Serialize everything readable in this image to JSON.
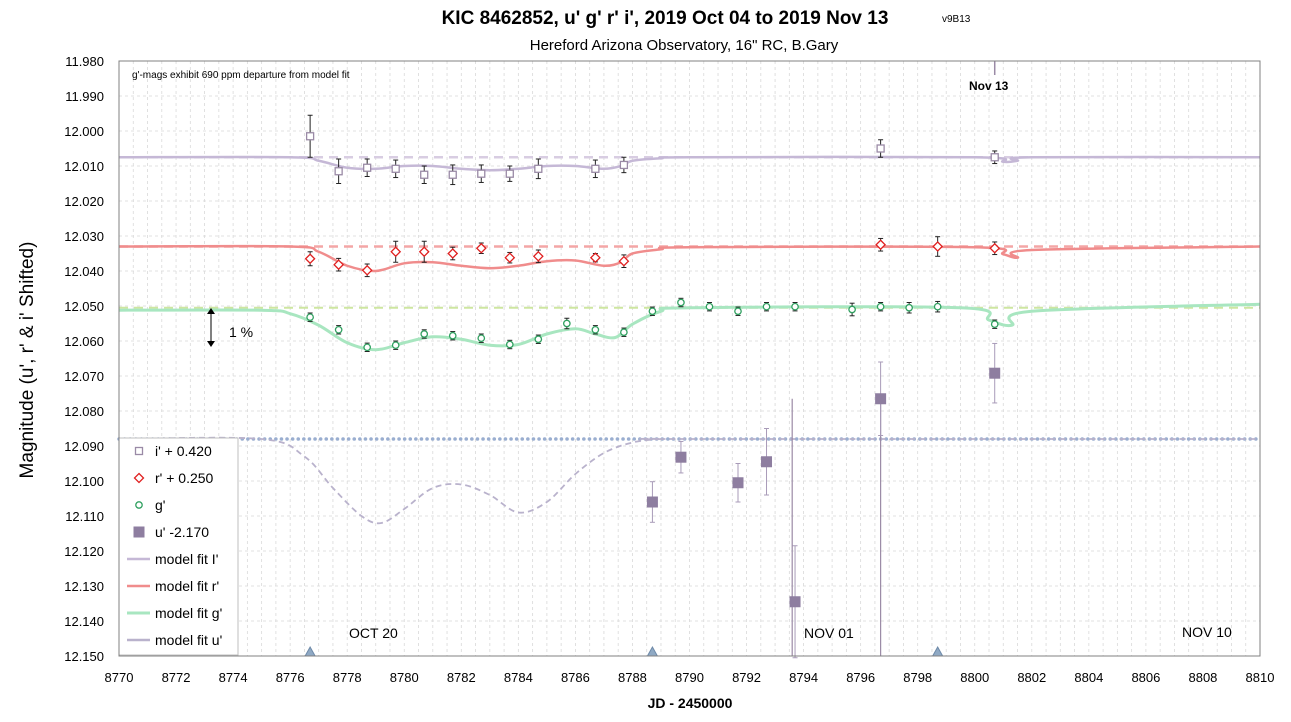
{
  "chart_data": {
    "type": "scatter",
    "title": "KIC 8462852, u' g' r' i', 2019 Oct 04 to 2019 Nov 13",
    "title_suffix": "v9B13",
    "subtitle": "Hereford Arizona Observatory, 16\" RC, B.Gary",
    "xlabel": "JD - 2450000",
    "ylabel": "Magnitude  (u', r' & i' Shifted)",
    "xlim": [
      8770,
      8810
    ],
    "ylim": [
      12.15,
      11.98
    ],
    "y_inverted": true,
    "grid": true,
    "legend_position": "left",
    "xticks": [
      "8770",
      "8772",
      "8774",
      "8776",
      "8778",
      "8780",
      "8782",
      "8784",
      "8786",
      "8788",
      "8790",
      "8792",
      "8794",
      "8796",
      "8798",
      "8800",
      "8802",
      "8804",
      "8806",
      "8808",
      "8810"
    ],
    "yticks": [
      "11.980",
      "11.990",
      "12.000",
      "12.010",
      "12.020",
      "12.030",
      "12.040",
      "12.050",
      "12.060",
      "12.070",
      "12.080",
      "12.090",
      "12.100",
      "12.110",
      "12.120",
      "12.130",
      "12.140",
      "12.150"
    ],
    "annotations": {
      "note": "g'-mags exhibit 690 ppm departure from model fit",
      "marker_nov13": "Nov 13",
      "scale_bar": "1 %",
      "month_oct20": "OCT 20",
      "month_nov01": "NOV 01",
      "month_nov10": "NOV 10"
    },
    "series": [
      {
        "name": "i' + 0.420",
        "marker": "square-open",
        "color": "#9a8aa6",
        "x": [
          8776.7,
          8777.7,
          8778.7,
          8779.7,
          8780.7,
          8781.7,
          8782.7,
          8783.7,
          8784.7,
          8786.7,
          8787.7,
          8796.7,
          8800.7
        ],
        "y": [
          12.0015,
          12.0115,
          12.0105,
          12.0108,
          12.0125,
          12.0125,
          12.0122,
          12.0122,
          12.0108,
          12.0108,
          12.0097,
          12.005,
          12.0075
        ],
        "err": [
          0.006,
          0.0035,
          0.0025,
          0.0025,
          0.0025,
          0.0028,
          0.0025,
          0.0022,
          0.0028,
          0.0025,
          0.0022,
          0.0025,
          0.0018
        ]
      },
      {
        "name": "r' + 0.250",
        "marker": "diamond-open",
        "color": "#e02020",
        "x": [
          8776.7,
          8777.7,
          8778.7,
          8779.7,
          8780.7,
          8781.7,
          8782.7,
          8783.7,
          8784.7,
          8786.7,
          8787.7,
          8796.7,
          8798.7,
          8800.7
        ],
        "y": [
          12.0365,
          12.0382,
          12.0398,
          12.0345,
          12.0345,
          12.035,
          12.0335,
          12.0362,
          12.0358,
          12.0362,
          12.0372,
          12.0325,
          12.033,
          12.0335
        ],
        "err": [
          0.002,
          0.0018,
          0.0018,
          0.003,
          0.003,
          0.0018,
          0.0015,
          0.0015,
          0.0018,
          0.0012,
          0.0018,
          0.0018,
          0.0028,
          0.0018
        ]
      },
      {
        "name": "g'",
        "marker": "circle-open",
        "color": "#30a060",
        "x": [
          8776.7,
          8777.7,
          8778.7,
          8779.7,
          8780.7,
          8781.7,
          8782.7,
          8783.7,
          8784.7,
          8785.7,
          8786.7,
          8787.7,
          8788.7,
          8789.7,
          8790.7,
          8791.7,
          8792.7,
          8793.7,
          8795.7,
          8796.7,
          8797.7,
          8798.7,
          8800.7
        ],
        "y": [
          12.0532,
          12.0568,
          12.0618,
          12.0612,
          12.058,
          12.0585,
          12.0592,
          12.061,
          12.0595,
          12.055,
          12.0568,
          12.0575,
          12.0515,
          12.049,
          12.0502,
          12.0515,
          12.0502,
          12.0502,
          12.051,
          12.0502,
          12.0505,
          12.0502,
          12.0552
        ],
        "err": [
          0.0012,
          0.0012,
          0.0012,
          0.0012,
          0.0012,
          0.0012,
          0.0012,
          0.0012,
          0.0012,
          0.0015,
          0.0012,
          0.0012,
          0.0012,
          0.0012,
          0.0012,
          0.0012,
          0.0012,
          0.0012,
          0.0018,
          0.0012,
          0.0015,
          0.0015,
          0.0012
        ]
      },
      {
        "name": "u' -2.170",
        "marker": "square-filled",
        "color": "#8e7ea0",
        "x": [
          8788.7,
          8789.7,
          8791.7,
          8792.7,
          8793.7,
          8796.7,
          8800.7
        ],
        "y": [
          12.106,
          12.0932,
          12.1005,
          12.0945,
          12.1345,
          12.0765,
          12.0692
        ],
        "err": [
          0.0058,
          0.0045,
          0.0055,
          0.0095,
          0.016,
          0.0105,
          0.0085
        ]
      }
    ],
    "models": [
      {
        "name": "model fit I'",
        "color": "#c5b8d6",
        "baseline": 12.0075,
        "x": [
          8770,
          8776,
          8777,
          8778,
          8779,
          8780,
          8781,
          8782,
          8783,
          8784,
          8785,
          8786,
          8787,
          8787.6,
          8788,
          8789,
          8790,
          8800,
          8801,
          8801.5,
          8802,
          8810
        ],
        "y": [
          12.0075,
          12.0075,
          12.0085,
          12.0105,
          12.0108,
          12.01,
          12.01,
          12.0108,
          12.0112,
          12.0108,
          12.01,
          12.01,
          12.0108,
          12.01,
          12.0085,
          12.0078,
          12.0075,
          12.0075,
          12.0088,
          12.0085,
          12.0075,
          12.0075
        ]
      },
      {
        "name": "model fit r'",
        "color": "#f08c8c",
        "baseline": 12.033,
        "x": [
          8770,
          8776,
          8777,
          8778,
          8779,
          8780,
          8781,
          8782,
          8783,
          8784,
          8785,
          8786,
          8787,
          8787.6,
          8788,
          8789,
          8790,
          8800,
          8801,
          8801.5,
          8802,
          8810
        ],
        "y": [
          12.033,
          12.033,
          12.0345,
          12.0385,
          12.04,
          12.0378,
          12.0375,
          12.0385,
          12.0392,
          12.0385,
          12.0372,
          12.037,
          12.0385,
          12.0375,
          12.035,
          12.0338,
          12.0332,
          12.0332,
          12.0352,
          12.0362,
          12.034,
          12.033
        ]
      },
      {
        "name": "model fit g'",
        "color": "#a8e6c0",
        "baseline": 12.0505,
        "x": [
          8770,
          8775,
          8776,
          8777,
          8778,
          8779,
          8780,
          8781,
          8782,
          8783,
          8784,
          8785,
          8786,
          8786.7,
          8787.4,
          8788,
          8789,
          8790,
          8799.5,
          8800.5,
          8801.3,
          8802,
          8810
        ],
        "y": [
          12.0512,
          12.0512,
          12.0522,
          12.0555,
          12.0605,
          12.0625,
          12.0605,
          12.0588,
          12.0595,
          12.0612,
          12.061,
          12.058,
          12.0565,
          12.058,
          12.059,
          12.0552,
          12.0515,
          12.0505,
          12.0505,
          12.054,
          12.0555,
          12.0515,
          12.0495
        ]
      },
      {
        "name": "model fit u'",
        "color": "#b9b2cc",
        "baseline": 12.088,
        "x": [
          8770,
          8775,
          8776.5,
          8777.5,
          8778.5,
          8779.2,
          8780,
          8781,
          8782,
          8783,
          8784,
          8785,
          8786,
          8787,
          8788,
          8789,
          8790,
          8810
        ],
        "y": [
          12.088,
          12.088,
          12.093,
          12.102,
          12.11,
          12.112,
          12.108,
          12.102,
          12.101,
          12.104,
          12.109,
          12.106,
          12.098,
          12.092,
          12.089,
          12.088,
          12.088,
          12.088
        ]
      }
    ],
    "baseline_colors": {
      "i": "#d8cde2",
      "r": "#f4a6a6",
      "g": "#cde6a0",
      "u": "#9aaed0"
    },
    "triangle_markers_x": [
      8776.7,
      8788.7,
      8798.7
    ],
    "vertical_marker_x": 8800.7,
    "vertical_lines": [
      {
        "x": 8793.6,
        "color": "#9a8aa6"
      },
      {
        "x": 8796.7,
        "color": "#9a8aa6"
      }
    ]
  }
}
